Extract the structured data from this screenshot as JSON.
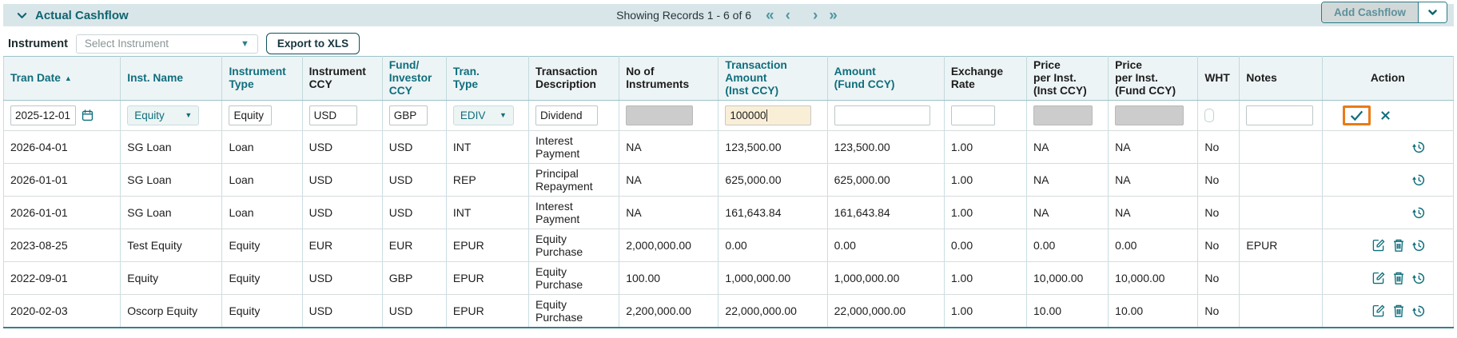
{
  "colors": {
    "accent_teal": "#0f6e7c",
    "highlight_orange": "#e87b17",
    "topbar_bg": "#d9e6e9",
    "header_bg": "#edf4f6",
    "disabled_input_bg": "#cccccc",
    "focused_input_bg": "#f9efd7"
  },
  "panel": {
    "title": "Actual Cashflow",
    "showing": "Showing Records 1 - 6 of 6",
    "pagination": {
      "first": "«",
      "previous": "‹",
      "next": "›",
      "last": "»"
    },
    "add_button_label": "Add Cashflow"
  },
  "toolbar": {
    "instrument_label": "Instrument",
    "instrument_placeholder": "Select Instrument",
    "export_label": "Export to XLS"
  },
  "table": {
    "columns": [
      {
        "id": "tran_date",
        "lines": [
          "Tran Date"
        ],
        "accent": true,
        "sort": "asc"
      },
      {
        "id": "inst_name",
        "lines": [
          "Inst. Name"
        ],
        "accent": true
      },
      {
        "id": "instrument_type",
        "lines": [
          "Instrument",
          "Type"
        ],
        "accent": true
      },
      {
        "id": "instrument_ccy",
        "lines": [
          "Instrument",
          "CCY"
        ],
        "accent": false
      },
      {
        "id": "fund_investor_ccy",
        "lines": [
          "Fund/",
          "Investor",
          "CCY"
        ],
        "accent": true
      },
      {
        "id": "tran_type",
        "lines": [
          "Tran.",
          "Type"
        ],
        "accent": true
      },
      {
        "id": "transaction_description",
        "lines": [
          "Transaction",
          "Description"
        ],
        "accent": false
      },
      {
        "id": "no_of_instruments",
        "lines": [
          "No of",
          "Instruments"
        ],
        "accent": false
      },
      {
        "id": "transaction_amount",
        "lines": [
          "Transaction",
          "Amount",
          "(Inst CCY)"
        ],
        "accent": true
      },
      {
        "id": "amount_fund",
        "lines": [
          "Amount",
          "(Fund CCY)"
        ],
        "accent": true
      },
      {
        "id": "exchange_rate",
        "lines": [
          "Exchange",
          "Rate"
        ],
        "accent": false
      },
      {
        "id": "price_inst",
        "lines": [
          "Price",
          "per Inst.",
          "(Inst CCY)"
        ],
        "accent": false
      },
      {
        "id": "price_fund",
        "lines": [
          "Price",
          "per Inst.",
          "(Fund CCY)"
        ],
        "accent": false
      },
      {
        "id": "wht",
        "lines": [
          "WHT"
        ],
        "accent": false
      },
      {
        "id": "notes",
        "lines": [
          "Notes"
        ],
        "accent": false
      },
      {
        "id": "action",
        "lines": [
          "Action"
        ],
        "accent": false
      }
    ],
    "edit_row": {
      "tran_date": "2025-12-01",
      "inst_name": "Equity",
      "instrument_type": "Equity",
      "instrument_ccy": "USD",
      "fund_investor_ccy": "GBP",
      "tran_type": "EDIV",
      "transaction_description": "Dividend",
      "transaction_amount": "100000"
    },
    "rows": [
      {
        "tran_date": "2026-04-01",
        "inst_name": "SG Loan",
        "instrument_type": "Loan",
        "instrument_ccy": "USD",
        "fund_investor_ccy": "USD",
        "tran_type": "INT",
        "transaction_description": "Interest Payment",
        "no_of_instruments": "NA",
        "transaction_amount": "123,500.00",
        "amount_fund": "123,500.00",
        "exchange_rate": "1.00",
        "price_inst": "NA",
        "price_fund": "NA",
        "wht": "No",
        "notes": "",
        "actions": [
          "history"
        ]
      },
      {
        "tran_date": "2026-01-01",
        "inst_name": "SG Loan",
        "instrument_type": "Loan",
        "instrument_ccy": "USD",
        "fund_investor_ccy": "USD",
        "tran_type": "REP",
        "transaction_description": "Principal Repayment",
        "no_of_instruments": "NA",
        "transaction_amount": "625,000.00",
        "amount_fund": "625,000.00",
        "exchange_rate": "1.00",
        "price_inst": "NA",
        "price_fund": "NA",
        "wht": "No",
        "notes": "",
        "actions": [
          "history"
        ]
      },
      {
        "tran_date": "2026-01-01",
        "inst_name": "SG Loan",
        "instrument_type": "Loan",
        "instrument_ccy": "USD",
        "fund_investor_ccy": "USD",
        "tran_type": "INT",
        "transaction_description": "Interest Payment",
        "no_of_instruments": "NA",
        "transaction_amount": "161,643.84",
        "amount_fund": "161,643.84",
        "exchange_rate": "1.00",
        "price_inst": "NA",
        "price_fund": "NA",
        "wht": "No",
        "notes": "",
        "actions": [
          "history"
        ]
      },
      {
        "tran_date": "2023-08-25",
        "inst_name": "Test Equity",
        "instrument_type": "Equity",
        "instrument_ccy": "EUR",
        "fund_investor_ccy": "EUR",
        "tran_type": "EPUR",
        "transaction_description": "Equity Purchase",
        "no_of_instruments": "2,000,000.00",
        "transaction_amount": "0.00",
        "amount_fund": "0.00",
        "exchange_rate": "0.00",
        "price_inst": "0.00",
        "price_fund": "0.00",
        "wht": "No",
        "notes": "EPUR",
        "actions": [
          "edit",
          "delete",
          "history"
        ]
      },
      {
        "tran_date": "2022-09-01",
        "inst_name": "Equity",
        "instrument_type": "Equity",
        "instrument_ccy": "USD",
        "fund_investor_ccy": "GBP",
        "tran_type": "EPUR",
        "transaction_description": "Equity Purchase",
        "no_of_instruments": "100.00",
        "transaction_amount": "1,000,000.00",
        "amount_fund": "1,000,000.00",
        "exchange_rate": "1.00",
        "price_inst": "10,000.00",
        "price_fund": "10,000.00",
        "wht": "No",
        "notes": "",
        "actions": [
          "edit",
          "delete",
          "history"
        ]
      },
      {
        "tran_date": "2020-02-03",
        "inst_name": "Oscorp Equity",
        "instrument_type": "Equity",
        "instrument_ccy": "USD",
        "fund_investor_ccy": "USD",
        "tran_type": "EPUR",
        "transaction_description": "Equity Purchase",
        "no_of_instruments": "2,200,000.00",
        "transaction_amount": "22,000,000.00",
        "amount_fund": "22,000,000.00",
        "exchange_rate": "1.00",
        "price_inst": "10.00",
        "price_fund": "10.00",
        "wht": "No",
        "notes": "",
        "actions": [
          "edit",
          "delete",
          "history"
        ]
      }
    ]
  }
}
